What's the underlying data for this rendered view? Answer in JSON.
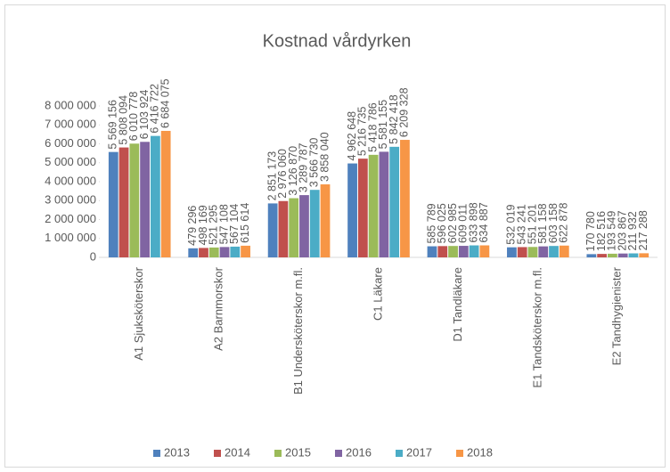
{
  "chart_data": {
    "type": "bar",
    "title": "Kostnad vårdyrken",
    "categories": [
      "A1 Sjuksköterskor",
      "A2 Barnmorskor",
      "B1 Undersköterskor m.fl.",
      "C1 Läkare",
      "D1 Tandläkare",
      "E1 Tandsköterskor m.fl.",
      "E2 Tandhygienister"
    ],
    "series": [
      {
        "name": "2013",
        "color": "#4f81bd",
        "values": [
          5569156,
          479296,
          2851173,
          4962648,
          585789,
          532019,
          170780
        ],
        "value_labels": [
          "5 569 156",
          "479 296",
          "2 851 173",
          "4 962 648",
          "585 789",
          "532 019",
          "170 780"
        ]
      },
      {
        "name": "2014",
        "color": "#c0504d",
        "values": [
          5808094,
          498169,
          2976060,
          5216735,
          596025,
          543241,
          182516
        ],
        "value_labels": [
          "5 808 094",
          "498 169",
          "2 976 060",
          "5 216 735",
          "596 025",
          "543 241",
          "182 516"
        ]
      },
      {
        "name": "2015",
        "color": "#9bbb59",
        "values": [
          6010778,
          521295,
          3126870,
          5418786,
          602985,
          551201,
          193549
        ],
        "value_labels": [
          "6 010 778",
          "521 295",
          "3 126 870",
          "5 418 786",
          "602 985",
          "551 201",
          "193 549"
        ]
      },
      {
        "name": "2016",
        "color": "#8064a2",
        "values": [
          6103924,
          547108,
          3289787,
          5581155,
          609011,
          581158,
          203867
        ],
        "value_labels": [
          "6 103 924",
          "547 108",
          "3 289 787",
          "5 581 155",
          "609 011",
          "581 158",
          "203 867"
        ]
      },
      {
        "name": "2017",
        "color": "#4bacc6",
        "values": [
          6416722,
          567104,
          3566730,
          5842418,
          633898,
          603158,
          211932
        ],
        "value_labels": [
          "6 416 722",
          "567 104",
          "3 566 730",
          "5 842 418",
          "633 898",
          "603 158",
          "211 932"
        ]
      },
      {
        "name": "2018",
        "color": "#f79646",
        "values": [
          6684075,
          615614,
          3858040,
          6209328,
          634887,
          622878,
          217288
        ],
        "value_labels": [
          "6 684 075",
          "615 614",
          "3 858 040",
          "6 209 328",
          "634 887",
          "622 878",
          "217 288"
        ]
      }
    ],
    "ylim": [
      0,
      8000000
    ],
    "yticks": [
      0,
      {
        "value": 1000000,
        "label": "1 000 000"
      },
      {
        "value": 2000000,
        "label": "2 000 000"
      },
      {
        "value": 3000000,
        "label": "3 000 000"
      },
      {
        "value": 4000000,
        "label": "4 000 000"
      },
      {
        "value": 5000000,
        "label": "5 000 000"
      },
      {
        "value": 6000000,
        "label": "6 000 000"
      },
      {
        "value": 7000000,
        "label": "7 000 000"
      },
      {
        "value": 8000000,
        "label": "8 000 000"
      }
    ],
    "legend": "bottom"
  }
}
